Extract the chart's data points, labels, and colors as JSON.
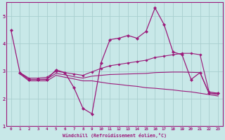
{
  "xlabel": "Windchill (Refroidissement éolien,°C)",
  "x": [
    0,
    1,
    2,
    3,
    4,
    5,
    6,
    7,
    8,
    9,
    10,
    11,
    12,
    13,
    14,
    15,
    16,
    17,
    18,
    19,
    20,
    21,
    22,
    23
  ],
  "line_main": [
    4.5,
    2.95,
    2.7,
    2.7,
    2.7,
    3.05,
    2.95,
    2.4,
    1.65,
    1.45,
    3.3,
    4.15,
    4.2,
    4.3,
    4.2,
    4.45,
    5.3,
    4.7,
    3.7,
    3.6,
    2.7,
    2.95,
    2.2,
    2.2
  ],
  "line_upper": [
    null,
    2.95,
    2.75,
    2.75,
    2.78,
    3.0,
    2.95,
    2.9,
    2.85,
    2.98,
    3.1,
    3.2,
    3.25,
    3.3,
    3.35,
    3.4,
    3.5,
    3.55,
    3.6,
    3.65,
    3.65,
    3.6,
    2.25,
    2.2
  ],
  "line_lower": [
    null,
    2.9,
    2.65,
    2.65,
    2.65,
    2.85,
    2.78,
    2.72,
    2.65,
    2.65,
    2.6,
    2.55,
    2.52,
    2.48,
    2.45,
    2.4,
    2.38,
    2.35,
    2.32,
    2.28,
    2.25,
    2.2,
    2.15,
    2.1
  ],
  "line_mid": [
    null,
    2.92,
    2.7,
    2.7,
    2.72,
    2.92,
    2.87,
    2.8,
    2.75,
    2.82,
    2.85,
    2.88,
    2.89,
    2.9,
    2.91,
    2.92,
    2.95,
    2.96,
    2.97,
    2.97,
    2.96,
    2.95,
    2.2,
    2.15
  ],
  "color": "#9b1a7a",
  "background": "#c8e8e8",
  "grid_color": "#a8cece",
  "ylim": [
    1.0,
    5.5
  ],
  "xlim": [
    -0.5,
    23.5
  ],
  "yticks": [
    1,
    2,
    3,
    4,
    5
  ],
  "xticks": [
    0,
    1,
    2,
    3,
    4,
    5,
    6,
    7,
    8,
    9,
    10,
    11,
    12,
    13,
    14,
    15,
    16,
    17,
    18,
    19,
    20,
    21,
    22,
    23
  ]
}
